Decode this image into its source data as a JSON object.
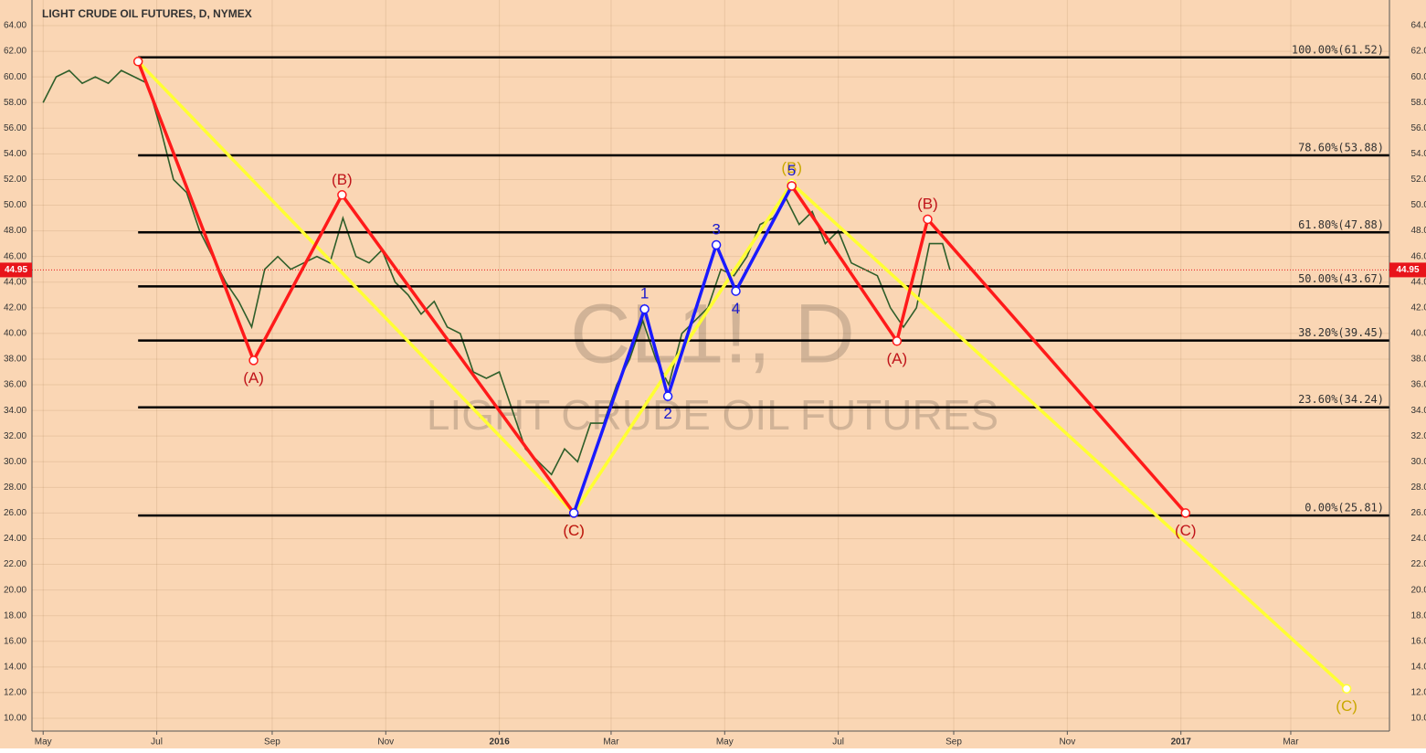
{
  "chart_data": {
    "type": "price-waves",
    "title": "LIGHT CRUDE OIL FUTURES, D, NYMEX",
    "watermark_symbol": "CL1!, D",
    "watermark_name": "LIGHT CRUDE OIL FUTURES",
    "background": "#fad6b4",
    "price_color": "#2e5e2a",
    "last_price": 44.95,
    "last_price_color": "#e8141a",
    "xlim": [
      -6,
      723
    ],
    "ylim": [
      10,
      64
    ],
    "xticks": [
      {
        "value": 0,
        "label": "May"
      },
      {
        "value": 61,
        "label": "Jul"
      },
      {
        "value": 123,
        "label": "Sep"
      },
      {
        "value": 184,
        "label": "Nov"
      },
      {
        "value": 245,
        "label": "2016"
      },
      {
        "value": 305,
        "label": "Mar"
      },
      {
        "value": 366,
        "label": "May"
      },
      {
        "value": 427,
        "label": "Jul"
      },
      {
        "value": 489,
        "label": "Sep"
      },
      {
        "value": 550,
        "label": "Nov"
      },
      {
        "value": 611,
        "label": "2017"
      },
      {
        "value": 670,
        "label": "Mar"
      }
    ],
    "yticks": [
      {
        "value": 10,
        "label": "10.00"
      },
      {
        "value": 12,
        "label": "12.00"
      },
      {
        "value": 14,
        "label": "14.00"
      },
      {
        "value": 16,
        "label": "16.00"
      },
      {
        "value": 18,
        "label": "18.00"
      },
      {
        "value": 20,
        "label": "20.00"
      },
      {
        "value": 22,
        "label": "22.00"
      },
      {
        "value": 24,
        "label": "24.00"
      },
      {
        "value": 26,
        "label": "26.00"
      },
      {
        "value": 28,
        "label": "28.00"
      },
      {
        "value": 30,
        "label": "30.00"
      },
      {
        "value": 32,
        "label": "32.00"
      },
      {
        "value": 34,
        "label": "34.00"
      },
      {
        "value": 36,
        "label": "36.00"
      },
      {
        "value": 38,
        "label": "38.00"
      },
      {
        "value": 40,
        "label": "40.00"
      },
      {
        "value": 42,
        "label": "42.00"
      },
      {
        "value": 44,
        "label": "44.00"
      },
      {
        "value": 46,
        "label": "46.00"
      },
      {
        "value": 48,
        "label": "48.00"
      },
      {
        "value": 50,
        "label": "50.00"
      },
      {
        "value": 52,
        "label": "52.00"
      },
      {
        "value": 54,
        "label": "54.00"
      },
      {
        "value": 56,
        "label": "56.00"
      },
      {
        "value": 58,
        "label": "58.00"
      },
      {
        "value": 60,
        "label": "60.00"
      },
      {
        "value": 62,
        "label": "62.00"
      },
      {
        "value": 64,
        "label": "64.00"
      }
    ],
    "grid": true,
    "x": [
      0,
      7,
      14,
      21,
      28,
      35,
      42,
      49,
      56,
      63,
      70,
      77,
      84,
      91,
      98,
      105,
      112,
      119,
      126,
      133,
      140,
      147,
      154,
      161,
      168,
      175,
      182,
      189,
      196,
      203,
      210,
      217,
      224,
      231,
      238,
      245,
      252,
      259,
      266,
      273,
      280,
      287,
      294,
      301,
      308,
      315,
      322,
      329,
      336,
      343,
      350,
      357,
      364,
      371,
      378,
      385,
      392,
      399,
      406,
      413,
      420,
      427,
      434,
      441,
      448,
      455,
      462,
      469,
      476,
      483,
      487
    ],
    "values": [
      58,
      60,
      60.5,
      59.5,
      60,
      59.5,
      60.5,
      60,
      59.5,
      56,
      52,
      51,
      48,
      46,
      44,
      42.5,
      40.5,
      45,
      46,
      45,
      45.5,
      46,
      45.5,
      49,
      46,
      45.5,
      46.5,
      44,
      43,
      41.5,
      42.5,
      40.5,
      40,
      37,
      36.5,
      37,
      34,
      31,
      30,
      29,
      31,
      30,
      33,
      33,
      36,
      38,
      41,
      38,
      36,
      40,
      41,
      42,
      45,
      44.5,
      46,
      48.5,
      49,
      50.5,
      48.5,
      49.5,
      47,
      48,
      45.5,
      45,
      44.5,
      42,
      40.5,
      42,
      47,
      47,
      44.95
    ],
    "fib_levels": [
      {
        "value": 61.52,
        "label": "100.00%(61.52)"
      },
      {
        "value": 53.88,
        "label": "78.60%(53.88)"
      },
      {
        "value": 47.88,
        "label": "61.80%(47.88)"
      },
      {
        "value": 43.67,
        "label": "50.00%(43.67)"
      },
      {
        "value": 39.45,
        "label": "38.20%(39.45)"
      },
      {
        "value": 34.24,
        "label": "23.60%(34.24)"
      },
      {
        "value": 25.81,
        "label": "0.00%(25.81)"
      }
    ],
    "fib_start": 51,
    "waves": [
      {
        "color": "#ffff33",
        "label_color": "#c9a800",
        "x": [
          51,
          285,
          402,
          700
        ],
        "y": [
          61.2,
          26,
          51.7,
          12.3
        ],
        "labels": [
          null,
          "(C)",
          "(B)",
          "(C)"
        ]
      },
      {
        "color": "#ff1a1a",
        "label_color": "#c0141a",
        "x": [
          51,
          113,
          160.5,
          285
        ],
        "y": [
          61.2,
          37.9,
          50.8,
          26
        ],
        "labels": [
          null,
          "(A)",
          "(B)",
          "(C)"
        ]
      },
      {
        "color": "#1a1aff",
        "label_color": "#1a1acc",
        "x": [
          285,
          323,
          335.5,
          361.5,
          372,
          402
        ],
        "y": [
          26,
          41.9,
          35.1,
          46.9,
          43.3,
          51.5
        ],
        "labels": [
          null,
          "1",
          "2",
          "3",
          "4",
          "5"
        ]
      },
      {
        "color": "#ff1a1a",
        "label_color": "#c0141a",
        "x": [
          402,
          458.5,
          475,
          613.5
        ],
        "y": [
          51.5,
          39.4,
          48.9,
          26
        ],
        "labels": [
          null,
          "(A)",
          "(B)",
          "(C)"
        ]
      }
    ]
  }
}
